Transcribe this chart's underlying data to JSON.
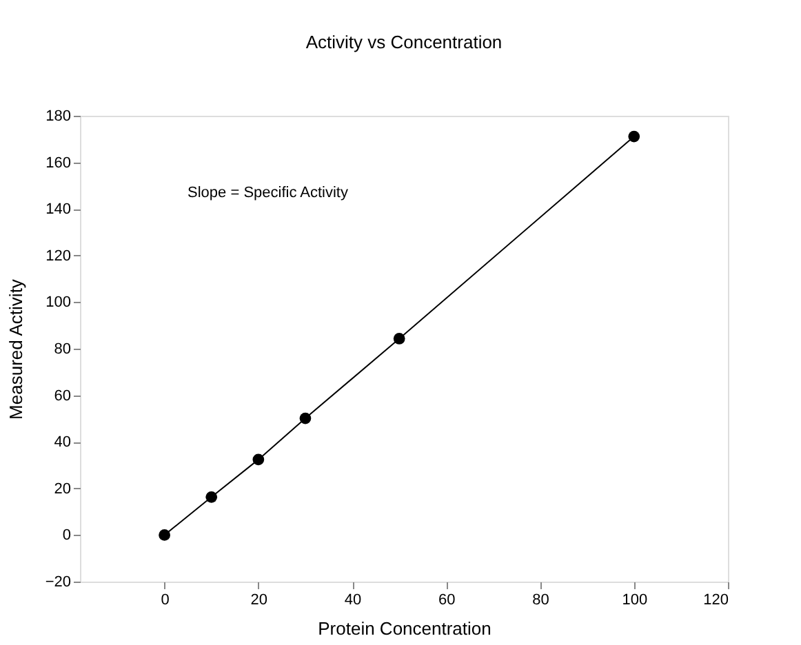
{
  "chart_data": {
    "type": "line",
    "title": "Activity vs Concentration",
    "xlabel": "Protein Concentration",
    "ylabel": "Measured Activity",
    "x": [
      0,
      10,
      20,
      30,
      50,
      100
    ],
    "series": [
      {
        "color": "#000000",
        "values": [
          0,
          16.3,
          32.4,
          50.1,
          84.3,
          171.1
        ]
      }
    ],
    "marker": "circle",
    "line_style": "solid",
    "xlim": [
      -18,
      120
    ],
    "xticks": [
      0,
      20,
      40,
      60,
      80,
      100,
      120
    ],
    "ylim": [
      -20,
      180
    ],
    "yticks": [
      -20,
      0,
      20,
      40,
      60,
      80,
      100,
      120,
      140,
      160,
      180
    ],
    "grid": false,
    "annotations": [
      "Slope = Specific Activity"
    ]
  }
}
